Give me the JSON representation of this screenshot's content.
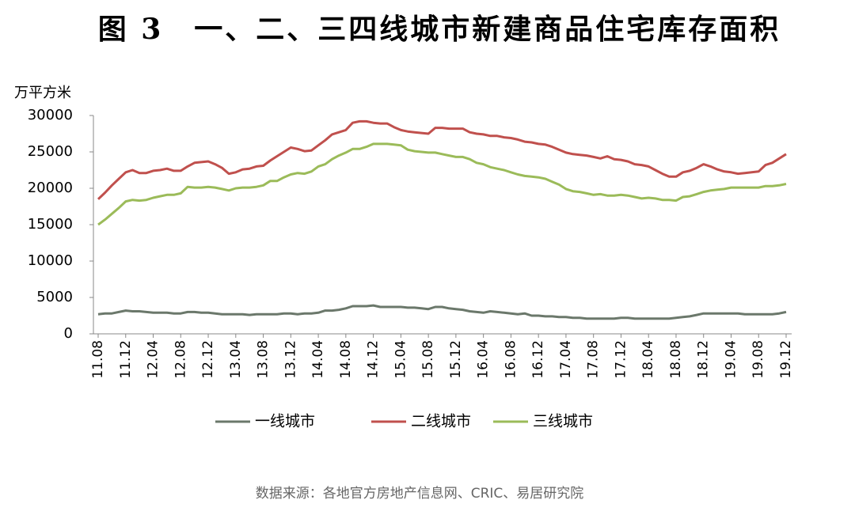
{
  "chart_data": {
    "type": "line",
    "title": "图 3　一、二、三四线城市新建商品住宅库存面积",
    "y_label": "万平方米",
    "source": "数据来源：各地官方房地产信息网、CRIC、易居研究院",
    "categories": [
      "11.08",
      null,
      null,
      null,
      "11.12",
      null,
      null,
      null,
      "12.04",
      null,
      null,
      null,
      "12.08",
      null,
      null,
      null,
      "12.12",
      null,
      null,
      null,
      "13.04",
      null,
      null,
      null,
      "13.08",
      null,
      null,
      null,
      "13.12",
      null,
      null,
      null,
      "14.04",
      null,
      null,
      null,
      "14.08",
      null,
      null,
      null,
      "14.12",
      null,
      null,
      null,
      "15.04",
      null,
      null,
      null,
      "15.08",
      null,
      null,
      null,
      "15.12",
      null,
      null,
      null,
      "16.04",
      null,
      null,
      null,
      "16.08",
      null,
      null,
      null,
      "16.12",
      null,
      null,
      null,
      "17.04",
      null,
      null,
      null,
      "17.08",
      null,
      null,
      null,
      "17.12",
      null,
      null,
      null,
      "18.04",
      null,
      null,
      null,
      "18.08",
      null,
      null,
      null,
      "18.12",
      null,
      null,
      null,
      "19.04",
      null,
      null,
      null,
      "19.08",
      null,
      null,
      null,
      "19.12"
    ],
    "series": [
      {
        "name": "一线城市",
        "color": "#6b786b",
        "values": [
          2700,
          2800,
          2800,
          3000,
          3200,
          3100,
          3100,
          3000,
          2900,
          2900,
          2900,
          2800,
          2800,
          3000,
          3000,
          2900,
          2900,
          2800,
          2700,
          2700,
          2700,
          2700,
          2600,
          2700,
          2700,
          2700,
          2700,
          2800,
          2800,
          2700,
          2800,
          2800,
          2900,
          3200,
          3200,
          3300,
          3500,
          3800,
          3800,
          3800,
          3900,
          3700,
          3700,
          3700,
          3700,
          3600,
          3600,
          3500,
          3400,
          3700,
          3700,
          3500,
          3400,
          3300,
          3100,
          3000,
          2900,
          3100,
          3000,
          2900,
          2800,
          2700,
          2800,
          2500,
          2500,
          2400,
          2400,
          2300,
          2300,
          2200,
          2200,
          2100,
          2100,
          2100,
          2100,
          2100,
          2200,
          2200,
          2100,
          2100,
          2100,
          2100,
          2100,
          2100,
          2200,
          2300,
          2400,
          2600,
          2800,
          2800,
          2800,
          2800,
          2800,
          2800,
          2700,
          2700,
          2700,
          2700,
          2700,
          2800,
          3000
        ]
      },
      {
        "name": "二线城市",
        "color": "#c0504d",
        "values": [
          18500,
          19400,
          20400,
          21300,
          22200,
          22500,
          22100,
          22100,
          22400,
          22500,
          22700,
          22400,
          22400,
          23000,
          23500,
          23600,
          23700,
          23300,
          22800,
          22000,
          22200,
          22600,
          22700,
          23000,
          23100,
          23800,
          24400,
          25000,
          25600,
          25400,
          25100,
          25200,
          25900,
          26600,
          27400,
          27700,
          28000,
          29000,
          29200,
          29200,
          29000,
          28900,
          28900,
          28400,
          28000,
          27800,
          27700,
          27600,
          27500,
          28300,
          28300,
          28200,
          28200,
          28200,
          27700,
          27500,
          27400,
          27200,
          27200,
          27000,
          26900,
          26700,
          26400,
          26300,
          26100,
          26000,
          25700,
          25300,
          24900,
          24700,
          24600,
          24500,
          24300,
          24100,
          24400,
          24000,
          23900,
          23700,
          23300,
          23200,
          23000,
          22500,
          22000,
          21600,
          21600,
          22200,
          22400,
          22800,
          23300,
          23000,
          22600,
          22300,
          22200,
          22000,
          22100,
          22200,
          22300,
          23200,
          23500,
          24100,
          24700
        ]
      },
      {
        "name": "三线城市",
        "color": "#9bbb59",
        "values": [
          15000,
          15700,
          16500,
          17300,
          18200,
          18400,
          18300,
          18400,
          18700,
          18900,
          19100,
          19100,
          19300,
          20200,
          20100,
          20100,
          20200,
          20100,
          19900,
          19700,
          20000,
          20100,
          20100,
          20200,
          20400,
          21000,
          21000,
          21500,
          21900,
          22100,
          22000,
          22300,
          23000,
          23300,
          24000,
          24500,
          24900,
          25400,
          25400,
          25700,
          26100,
          26100,
          26100,
          26000,
          25900,
          25300,
          25100,
          25000,
          24900,
          24900,
          24700,
          24500,
          24300,
          24300,
          24000,
          23500,
          23300,
          22900,
          22700,
          22500,
          22200,
          21900,
          21700,
          21600,
          21500,
          21300,
          20900,
          20500,
          19900,
          19600,
          19500,
          19300,
          19100,
          19200,
          19000,
          19000,
          19100,
          19000,
          18800,
          18600,
          18700,
          18600,
          18400,
          18400,
          18300,
          18800,
          18900,
          19200,
          19500,
          19700,
          19800,
          19900,
          20100,
          20100,
          20100,
          20100,
          20100,
          20300,
          20300,
          20400,
          20600
        ]
      }
    ],
    "ylim": [
      0,
      30000
    ],
    "yticks": [
      0,
      5000,
      10000,
      15000,
      20000,
      25000,
      30000
    ],
    "grid": false,
    "legend": "bottom"
  }
}
